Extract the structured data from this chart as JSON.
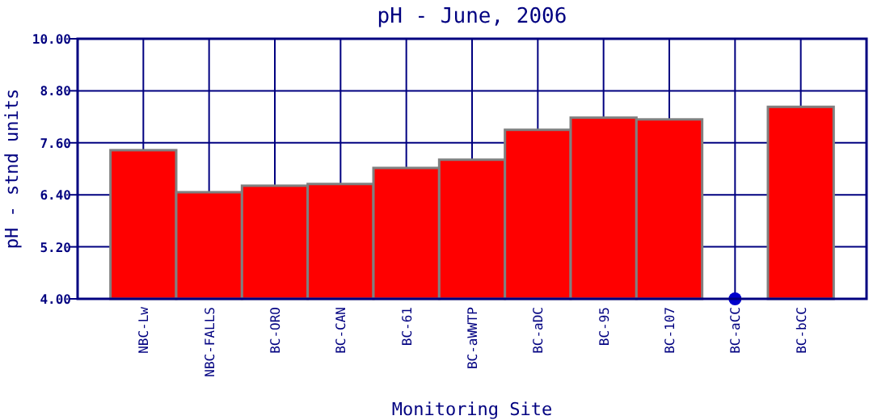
{
  "chart_data": {
    "type": "bar",
    "title": "pH - June, 2006",
    "xlabel": "Monitoring Site",
    "ylabel": "pH - stnd units",
    "categories": [
      "NBC-Lw",
      "NBC-FALLS",
      "BC-ORO",
      "BC-CAN",
      "BC-61",
      "BC-aWWTP",
      "BC-aDC",
      "BC-95",
      "BC-107",
      "BC-aCC",
      "BC-bCC"
    ],
    "series": [
      {
        "color": "#ff0000",
        "values": [
          7.43,
          6.46,
          6.61,
          6.65,
          7.02,
          7.21,
          7.9,
          8.18,
          8.14,
          null,
          8.43
        ]
      },
      {
        "type": "scatter",
        "color": "#0000cc",
        "marker": "circle",
        "x": [
          "BC-aCC"
        ],
        "values": [
          4
        ]
      }
    ],
    "ylim": [
      4,
      10
    ],
    "yticks": [
      {
        "value": 4,
        "label": "4.00"
      },
      {
        "value": 5.2,
        "label": "5.20"
      },
      {
        "value": 6.4,
        "label": "6.40"
      },
      {
        "value": 7.6,
        "label": "7.60"
      },
      {
        "value": 8.8,
        "label": "8.80"
      },
      {
        "value": 10,
        "label": "10.00"
      }
    ],
    "grid": true
  }
}
